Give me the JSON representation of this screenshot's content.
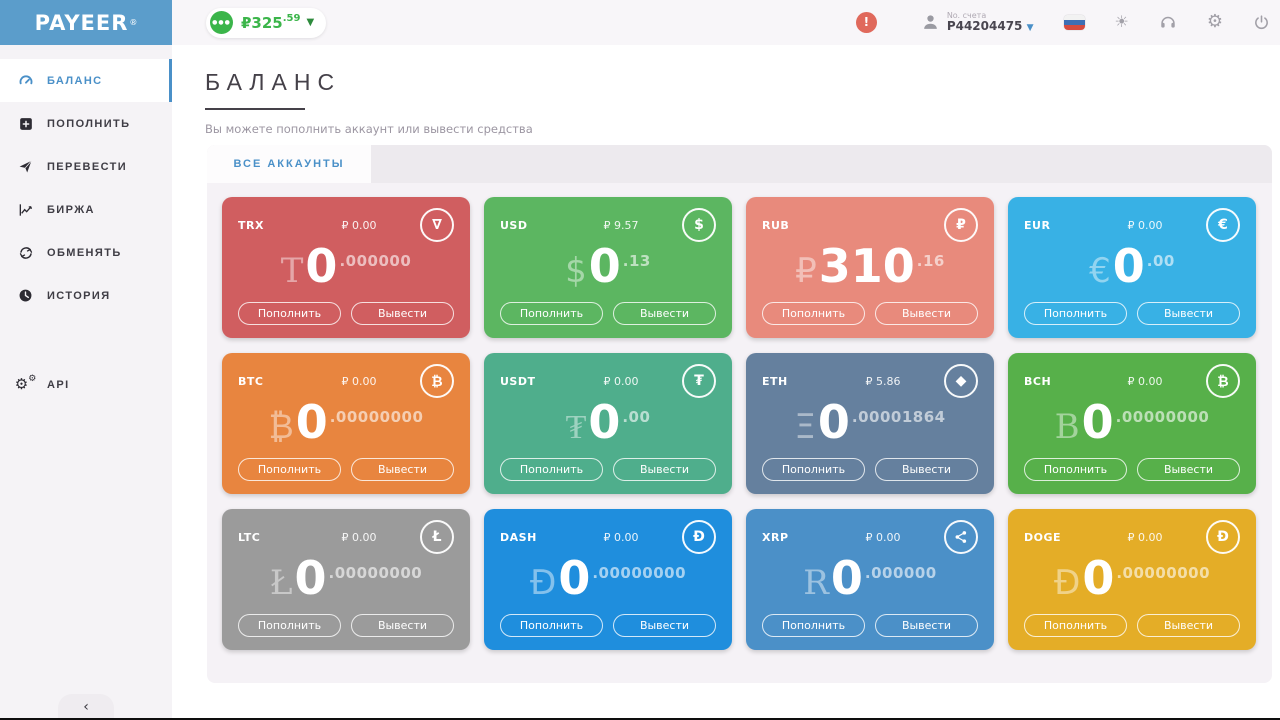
{
  "topbar": {
    "logo": "PAYEER",
    "logo_reg": "®",
    "balance_chip": {
      "dots": "●●●",
      "amount": "₽325",
      "cents": ".59",
      "caret": "▼"
    },
    "alert_badge": "!",
    "account_label": "No. счета",
    "account_number": "P44204475",
    "account_caret": "▼",
    "sun_glyph": "☀",
    "gear_glyph": "⚙"
  },
  "sidebar": {
    "items": [
      {
        "label": "БАЛАНС",
        "icon": "gauge-icon",
        "active": true
      },
      {
        "label": "ПОПОЛНИТЬ",
        "icon": "plus-square-icon",
        "active": false
      },
      {
        "label": "ПЕРЕВЕСТИ",
        "icon": "send-icon",
        "active": false
      },
      {
        "label": "БИРЖА",
        "icon": "chart-icon",
        "active": false
      },
      {
        "label": "ОБМЕНЯТЬ",
        "icon": "exchange-icon",
        "active": false
      },
      {
        "label": "ИСТОРИЯ",
        "icon": "history-icon",
        "active": false
      },
      {
        "label": "API",
        "icon": "api-gears-icon",
        "active": false,
        "gap_before": true
      }
    ],
    "collapse_glyph": "‹"
  },
  "page": {
    "title": "БАЛАНС",
    "subtitle": "Вы можете пополнить аккаунт или вывести средства",
    "tab": "ВСЕ АККАУНТЫ"
  },
  "card_buttons": {
    "deposit": "Пополнить",
    "withdraw": "Вывести"
  },
  "cards": [
    {
      "code": "TRX",
      "converted": "₽ 0.00",
      "symbol": "T",
      "serif": true,
      "int": "0",
      "dec": ".000000",
      "color": "#d05e60",
      "icon": "∇",
      "icon_name": "tron-icon"
    },
    {
      "code": "USD",
      "converted": "₽ 9.57",
      "symbol": "$",
      "serif": false,
      "int": "0",
      "dec": ".13",
      "color": "#5cb661",
      "icon": "$",
      "icon_name": "dollar-icon"
    },
    {
      "code": "RUB",
      "converted": "",
      "symbol": "₽",
      "serif": false,
      "int": "310",
      "dec": ".16",
      "color": "#e88a7c",
      "icon": "₽",
      "icon_name": "ruble-icon"
    },
    {
      "code": "EUR",
      "converted": "₽ 0.00",
      "symbol": "€",
      "serif": false,
      "int": "0",
      "dec": ".00",
      "color": "#38b1e5",
      "icon": "€",
      "icon_name": "euro-icon"
    },
    {
      "code": "BTC",
      "converted": "₽ 0.00",
      "symbol": "₿",
      "serif": false,
      "int": "0",
      "dec": ".00000000",
      "color": "#e8853f",
      "icon": "₿",
      "icon_name": "bitcoin-icon"
    },
    {
      "code": "USDT",
      "converted": "₽ 0.00",
      "symbol": "₮",
      "serif": true,
      "int": "0",
      "dec": ".00",
      "color": "#4fae8c",
      "icon": "₮",
      "icon_name": "tether-icon"
    },
    {
      "code": "ETH",
      "converted": "₽ 5.86",
      "symbol": "Ξ",
      "serif": false,
      "int": "0",
      "dec": ".00001864",
      "color": "#65809e",
      "icon": "◆",
      "icon_name": "ethereum-icon"
    },
    {
      "code": "BCH",
      "converted": "₽ 0.00",
      "symbol": "B",
      "serif": true,
      "int": "0",
      "dec": ".00000000",
      "color": "#57b04a",
      "icon": "₿",
      "icon_name": "bitcoin-cash-icon"
    },
    {
      "code": "LTC",
      "converted": "₽ 0.00",
      "symbol": "Ł",
      "serif": true,
      "int": "0",
      "dec": ".00000000",
      "color": "#9b9b9b",
      "icon": "Ł",
      "icon_name": "litecoin-icon"
    },
    {
      "code": "DASH",
      "converted": "₽ 0.00",
      "symbol": "Đ",
      "serif": false,
      "int": "0",
      "dec": ".00000000",
      "color": "#1f8edd",
      "icon": "Đ",
      "icon_name": "dash-icon"
    },
    {
      "code": "XRP",
      "converted": "₽ 0.00",
      "symbol": "R",
      "serif": true,
      "int": "0",
      "dec": ".000000",
      "color": "#4b90c8",
      "icon": "share",
      "icon_name": "xrp-share-icon"
    },
    {
      "code": "DOGE",
      "converted": "₽ 0.00",
      "symbol": "Ð",
      "serif": false,
      "int": "0",
      "dec": ".00000000",
      "color": "#e4ad27",
      "icon": "Ð",
      "icon_name": "dogecoin-icon"
    }
  ]
}
